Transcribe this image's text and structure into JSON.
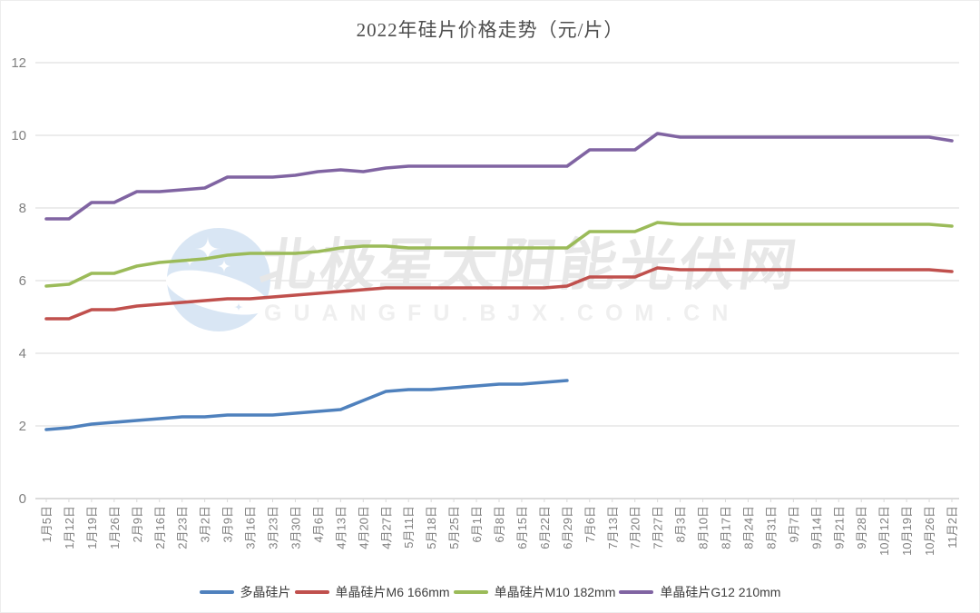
{
  "title": "2022年硅片价格走势（元/片）",
  "watermark": {
    "logo": "bjx-star-moon-logo",
    "line1": "北极星太阳能光伏网",
    "line2": "GUANGFU.BJX.COM.CN",
    "text1_color": "#e7e7e7",
    "text2_color": "#efefef",
    "logo_color": "#d9e6f4"
  },
  "axes": {
    "yticks": [
      "0",
      "2",
      "4",
      "6",
      "8",
      "10",
      "12"
    ],
    "axis_label_color": "#808080",
    "gridline_color": "#d9d9d9",
    "zeroline_color": "#b7b7b7"
  },
  "chart_data": {
    "type": "line",
    "title": "2022年硅片价格走势（元/片）",
    "ylim": [
      0,
      12
    ],
    "ytick_step": 2,
    "grid": "horizontal",
    "legend_position": "bottom",
    "categories": [
      "1月5日",
      "1月12日",
      "1月19日",
      "1月26日",
      "2月9日",
      "2月16日",
      "2月23日",
      "3月2日",
      "3月9日",
      "3月16日",
      "3月23日",
      "3月30日",
      "4月6日",
      "4月13日",
      "4月20日",
      "4月27日",
      "5月11日",
      "5月18日",
      "5月25日",
      "6月1日",
      "6月8日",
      "6月15日",
      "6月22日",
      "6月29日",
      "7月6日",
      "7月13日",
      "7月20日",
      "7月27日",
      "8月3日",
      "8月10日",
      "8月17日",
      "8月24日",
      "8月31日",
      "9月7日",
      "9月14日",
      "9月21日",
      "9月28日",
      "10月12日",
      "10月19日",
      "10月26日",
      "11月2日"
    ],
    "series": [
      {
        "name": "多晶硅片",
        "color": "#4F81BD",
        "values": [
          1.9,
          1.95,
          2.05,
          2.1,
          2.15,
          2.2,
          2.25,
          2.25,
          2.3,
          2.3,
          2.3,
          2.35,
          2.4,
          2.45,
          2.7,
          2.95,
          3.0,
          3.0,
          3.05,
          3.1,
          3.15,
          3.15,
          3.2,
          3.25
        ]
      },
      {
        "name": "单晶硅片M6 166mm",
        "color": "#C0504D",
        "values": [
          4.95,
          4.95,
          5.2,
          5.2,
          5.3,
          5.35,
          5.4,
          5.45,
          5.5,
          5.5,
          5.55,
          5.6,
          5.65,
          5.7,
          5.75,
          5.8,
          5.8,
          5.8,
          5.8,
          5.8,
          5.8,
          5.8,
          5.8,
          5.85,
          6.1,
          6.1,
          6.1,
          6.35,
          6.3,
          6.3,
          6.3,
          6.3,
          6.3,
          6.3,
          6.3,
          6.3,
          6.3,
          6.3,
          6.3,
          6.3,
          6.25
        ]
      },
      {
        "name": "单晶硅片M10 182mm",
        "color": "#9BBB59",
        "values": [
          5.85,
          5.9,
          6.2,
          6.2,
          6.4,
          6.5,
          6.55,
          6.6,
          6.7,
          6.75,
          6.75,
          6.75,
          6.8,
          6.9,
          6.95,
          6.95,
          6.9,
          6.9,
          6.9,
          6.9,
          6.9,
          6.9,
          6.9,
          6.9,
          7.35,
          7.35,
          7.35,
          7.6,
          7.55,
          7.55,
          7.55,
          7.55,
          7.55,
          7.55,
          7.55,
          7.55,
          7.55,
          7.55,
          7.55,
          7.55,
          7.5
        ]
      },
      {
        "name": "单晶硅片G12 210mm",
        "color": "#8064A2",
        "values": [
          7.7,
          7.7,
          8.15,
          8.15,
          8.45,
          8.45,
          8.5,
          8.55,
          8.85,
          8.85,
          8.85,
          8.9,
          9.0,
          9.05,
          9.0,
          9.1,
          9.15,
          9.15,
          9.15,
          9.15,
          9.15,
          9.15,
          9.15,
          9.15,
          9.6,
          9.6,
          9.6,
          10.05,
          9.95,
          9.95,
          9.95,
          9.95,
          9.95,
          9.95,
          9.95,
          9.95,
          9.95,
          9.95,
          9.95,
          9.95,
          9.85
        ]
      }
    ]
  }
}
